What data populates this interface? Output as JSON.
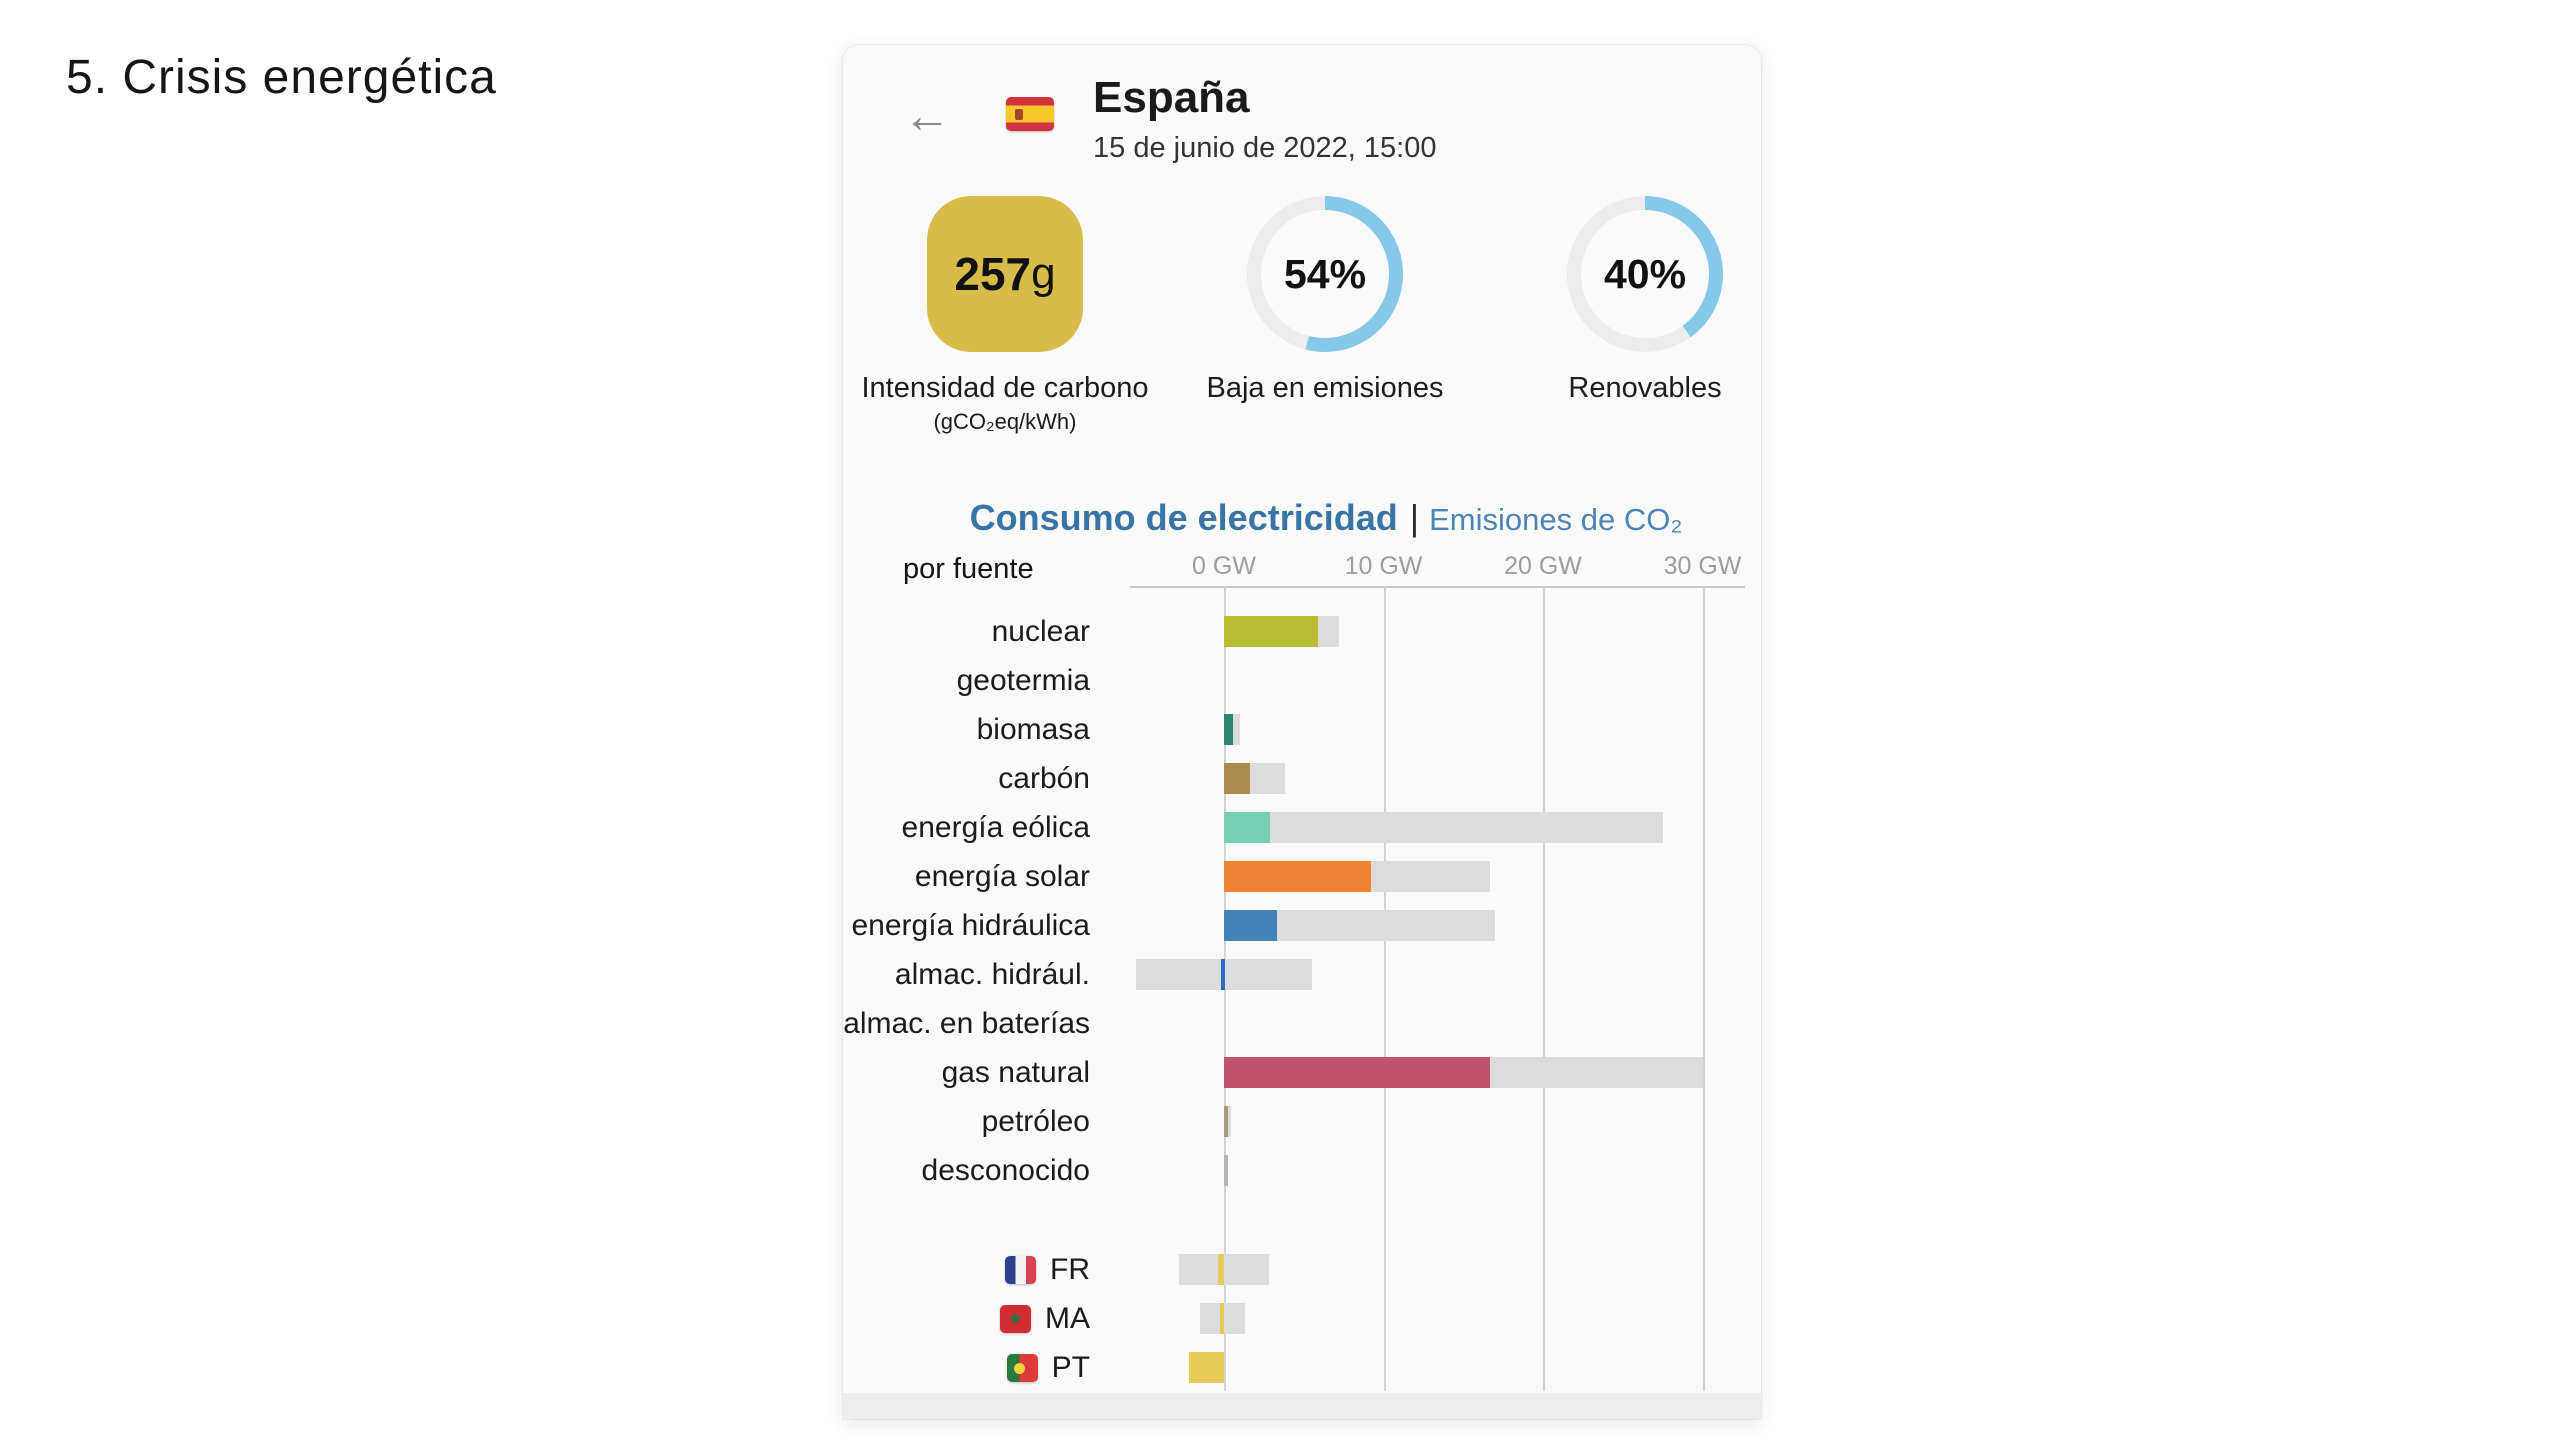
{
  "slide": {
    "title": "5. Crisis energética"
  },
  "app": {
    "header": {
      "back_icon": "arrow-left",
      "flag": "spain-flag",
      "country": "España",
      "datetime": "15 de junio de 2022, 15:00"
    },
    "metrics": {
      "ring_color": "#85c8e9",
      "ring_track_color": "#ececec",
      "carbon_intensity": {
        "value": "257",
        "unit": "g",
        "label": "Intensidad de carbono",
        "sublabel": "(gCO₂eq/kWh)",
        "box_color": "#d8bc4a"
      },
      "low_emissions": {
        "value": "54%",
        "percent": 54,
        "label": "Baja en emisiones"
      },
      "renewables": {
        "value": "40%",
        "percent": 40,
        "label": "Renovables"
      }
    },
    "tabs": [
      {
        "label": "Consumo de electricidad",
        "active": true
      },
      {
        "label": "Emisiones de CO₂",
        "active": false
      }
    ],
    "tabs_separator": "|",
    "accent_blue": "#3a74a6"
  },
  "chart_data": {
    "type": "bar",
    "orientation": "horizontal",
    "title": "Consumo de electricidad",
    "group_label": "por fuente",
    "unit": "GW",
    "xlim": [
      -6,
      32.6
    ],
    "tick_values": [
      0,
      10,
      20,
      30
    ],
    "tick_labels": [
      "0 GW",
      "10 GW",
      "20 GW",
      "30 GW"
    ],
    "grid": true,
    "capacity_color": "#dcdcdc",
    "rows": [
      {
        "label": "nuclear",
        "value": 5.9,
        "capacity_min": 0,
        "capacity": 7.2,
        "color": "#b9bd33"
      },
      {
        "label": "geotermia",
        "value": 0,
        "capacity_min": 0,
        "capacity": 0,
        "color": "#885511"
      },
      {
        "label": "biomasa",
        "value": 0.55,
        "capacity_min": 0,
        "capacity": 1.0,
        "color": "#2e8570"
      },
      {
        "label": "carbón",
        "value": 1.6,
        "capacity_min": 0,
        "capacity": 3.8,
        "color": "#ac8c4e"
      },
      {
        "label": "energía eólica",
        "value": 2.9,
        "capacity_min": 0,
        "capacity": 27.5,
        "color": "#74cfb4"
      },
      {
        "label": "energía solar",
        "value": 9.2,
        "capacity_min": 0,
        "capacity": 16.7,
        "color": "#ee8433"
      },
      {
        "label": "energía hidráulica",
        "value": 3.3,
        "capacity_min": 0,
        "capacity": 17.0,
        "color": "#4284b8"
      },
      {
        "label": "almac. hidrául.",
        "value": -0.2,
        "capacity_min": -5.5,
        "capacity": 5.5,
        "color": "#2d6bc0"
      },
      {
        "label": "almac. en baterías",
        "value": 0,
        "capacity_min": 0,
        "capacity": 0,
        "color": "#888888"
      },
      {
        "label": "gas natural",
        "value": 16.7,
        "capacity_min": 0,
        "capacity": 30.0,
        "color": "#c0546f"
      },
      {
        "label": "petróleo",
        "value": 0.25,
        "capacity_min": 0,
        "capacity": 0.45,
        "color": "#a59a80"
      },
      {
        "label": "desconocido",
        "value": 0.2,
        "capacity_min": 0,
        "capacity": 0.2,
        "color": "#b7b4ae"
      }
    ],
    "exchanges": [
      {
        "label": "FR",
        "flag": "france-flag",
        "value": -0.4,
        "capacity_min": -2.8,
        "capacity": 2.8,
        "color": "#e6ca5a"
      },
      {
        "label": "MA",
        "flag": "morocco-flag",
        "value": -0.25,
        "capacity_min": -1.5,
        "capacity": 1.3,
        "color": "#e6ca5a"
      },
      {
        "label": "PT",
        "flag": "portugal-flag",
        "value": -2.2,
        "capacity_min": -2.2,
        "capacity": 0,
        "color": "#e6ca5a"
      }
    ]
  }
}
